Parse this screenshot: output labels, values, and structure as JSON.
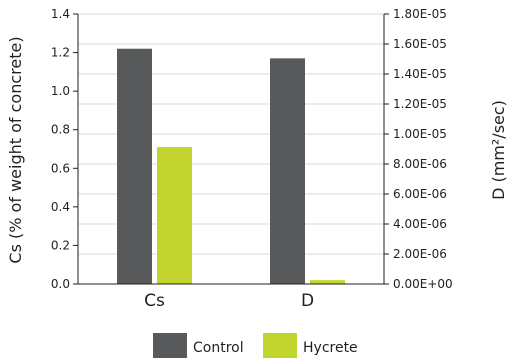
{
  "chart_data": {
    "type": "bar",
    "categories": [
      "Cs",
      "D"
    ],
    "series": [
      {
        "name": "Control",
        "color": "#58595b",
        "values": [
          1.22,
          1.17
        ]
      },
      {
        "name": "Hycrete",
        "color": "#c2d52f",
        "values": [
          0.71,
          0.02
        ]
      }
    ],
    "y_left": {
      "label": "Cs (% of weight of concrete)",
      "ylim": [
        0,
        1.4
      ],
      "ticks": [
        "0.0",
        "0.2",
        "0.4",
        "0.6",
        "0.8",
        "1.0",
        "1.2",
        "1.4"
      ]
    },
    "y_right": {
      "label": "D (mm²/sec)",
      "ylim": [
        0,
        1.8e-05
      ],
      "ticks": [
        "0.00E+00",
        "2.00E-06",
        "4.00E-06",
        "6.00E-06",
        "8.00E-06",
        "1.00E-05",
        "1.20E-05",
        "1.40E-05",
        "1.60E-05",
        "1.80E-05"
      ]
    },
    "grid": true,
    "legend_position": "bottom"
  }
}
